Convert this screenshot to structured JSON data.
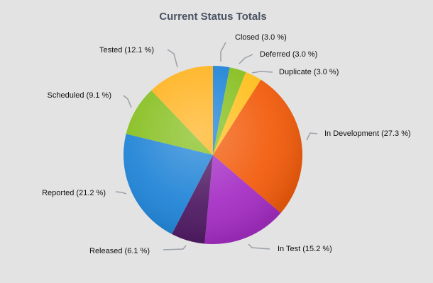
{
  "chart_data": {
    "type": "pie",
    "title": "Current Status Totals",
    "slices": [
      {
        "label": "Closed",
        "value": 3.0,
        "display": "Closed (3.0 %)",
        "color": "#1f83d6"
      },
      {
        "label": "Deferred",
        "value": 3.0,
        "display": "Deferred (3.0 %)",
        "color": "#86bf1f"
      },
      {
        "label": "Duplicate",
        "value": 3.0,
        "display": "Duplicate (3.0 %)",
        "color": "#ffbf1c"
      },
      {
        "label": "In Development",
        "value": 27.3,
        "display": "In Development (27.3 %)",
        "color": "#f25c0c"
      },
      {
        "label": "In Test",
        "value": 15.2,
        "display": "In Test (15.2 %)",
        "color": "#a52ec4"
      },
      {
        "label": "Released",
        "value": 6.1,
        "display": "Released (6.1 %)",
        "color": "#4f1a63"
      },
      {
        "label": "Reported",
        "value": 21.2,
        "display": "Reported (21.2 %)",
        "color": "#1f83d6"
      },
      {
        "label": "Scheduled",
        "value": 9.1,
        "display": "Scheduled (9.1 %)",
        "color": "#86bf1f"
      },
      {
        "label": "Tested",
        "value": 12.1,
        "display": "Tested (12.1 %)",
        "color": "#ffb320"
      }
    ]
  }
}
